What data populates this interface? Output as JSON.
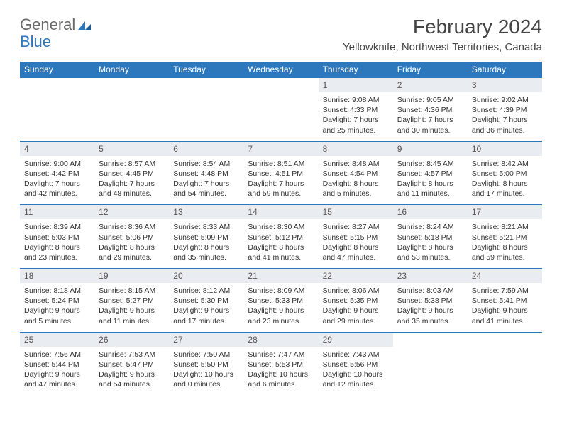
{
  "logo": {
    "text1": "General",
    "text2": "Blue"
  },
  "title": "February 2024",
  "location": "Yellowknife, Northwest Territories, Canada",
  "weekday_labels": [
    "Sunday",
    "Monday",
    "Tuesday",
    "Wednesday",
    "Thursday",
    "Friday",
    "Saturday"
  ],
  "colors": {
    "header_bg": "#2d78bd",
    "header_text": "#ffffff",
    "daynum_bg": "#e9edf1",
    "border": "#2d78bd",
    "text": "#333333",
    "logo_gray": "#6a6a6a",
    "logo_blue": "#2d78bd"
  },
  "typography": {
    "title_fontsize": 28,
    "location_fontsize": 15,
    "weekday_fontsize": 12,
    "daynum_fontsize": 12,
    "cell_fontsize": 10.5
  },
  "weeks": [
    [
      null,
      null,
      null,
      null,
      {
        "n": "1",
        "sr": "Sunrise: 9:08 AM",
        "ss": "Sunset: 4:33 PM",
        "dl1": "Daylight: 7 hours",
        "dl2": "and 25 minutes."
      },
      {
        "n": "2",
        "sr": "Sunrise: 9:05 AM",
        "ss": "Sunset: 4:36 PM",
        "dl1": "Daylight: 7 hours",
        "dl2": "and 30 minutes."
      },
      {
        "n": "3",
        "sr": "Sunrise: 9:02 AM",
        "ss": "Sunset: 4:39 PM",
        "dl1": "Daylight: 7 hours",
        "dl2": "and 36 minutes."
      }
    ],
    [
      {
        "n": "4",
        "sr": "Sunrise: 9:00 AM",
        "ss": "Sunset: 4:42 PM",
        "dl1": "Daylight: 7 hours",
        "dl2": "and 42 minutes."
      },
      {
        "n": "5",
        "sr": "Sunrise: 8:57 AM",
        "ss": "Sunset: 4:45 PM",
        "dl1": "Daylight: 7 hours",
        "dl2": "and 48 minutes."
      },
      {
        "n": "6",
        "sr": "Sunrise: 8:54 AM",
        "ss": "Sunset: 4:48 PM",
        "dl1": "Daylight: 7 hours",
        "dl2": "and 54 minutes."
      },
      {
        "n": "7",
        "sr": "Sunrise: 8:51 AM",
        "ss": "Sunset: 4:51 PM",
        "dl1": "Daylight: 7 hours",
        "dl2": "and 59 minutes."
      },
      {
        "n": "8",
        "sr": "Sunrise: 8:48 AM",
        "ss": "Sunset: 4:54 PM",
        "dl1": "Daylight: 8 hours",
        "dl2": "and 5 minutes."
      },
      {
        "n": "9",
        "sr": "Sunrise: 8:45 AM",
        "ss": "Sunset: 4:57 PM",
        "dl1": "Daylight: 8 hours",
        "dl2": "and 11 minutes."
      },
      {
        "n": "10",
        "sr": "Sunrise: 8:42 AM",
        "ss": "Sunset: 5:00 PM",
        "dl1": "Daylight: 8 hours",
        "dl2": "and 17 minutes."
      }
    ],
    [
      {
        "n": "11",
        "sr": "Sunrise: 8:39 AM",
        "ss": "Sunset: 5:03 PM",
        "dl1": "Daylight: 8 hours",
        "dl2": "and 23 minutes."
      },
      {
        "n": "12",
        "sr": "Sunrise: 8:36 AM",
        "ss": "Sunset: 5:06 PM",
        "dl1": "Daylight: 8 hours",
        "dl2": "and 29 minutes."
      },
      {
        "n": "13",
        "sr": "Sunrise: 8:33 AM",
        "ss": "Sunset: 5:09 PM",
        "dl1": "Daylight: 8 hours",
        "dl2": "and 35 minutes."
      },
      {
        "n": "14",
        "sr": "Sunrise: 8:30 AM",
        "ss": "Sunset: 5:12 PM",
        "dl1": "Daylight: 8 hours",
        "dl2": "and 41 minutes."
      },
      {
        "n": "15",
        "sr": "Sunrise: 8:27 AM",
        "ss": "Sunset: 5:15 PM",
        "dl1": "Daylight: 8 hours",
        "dl2": "and 47 minutes."
      },
      {
        "n": "16",
        "sr": "Sunrise: 8:24 AM",
        "ss": "Sunset: 5:18 PM",
        "dl1": "Daylight: 8 hours",
        "dl2": "and 53 minutes."
      },
      {
        "n": "17",
        "sr": "Sunrise: 8:21 AM",
        "ss": "Sunset: 5:21 PM",
        "dl1": "Daylight: 8 hours",
        "dl2": "and 59 minutes."
      }
    ],
    [
      {
        "n": "18",
        "sr": "Sunrise: 8:18 AM",
        "ss": "Sunset: 5:24 PM",
        "dl1": "Daylight: 9 hours",
        "dl2": "and 5 minutes."
      },
      {
        "n": "19",
        "sr": "Sunrise: 8:15 AM",
        "ss": "Sunset: 5:27 PM",
        "dl1": "Daylight: 9 hours",
        "dl2": "and 11 minutes."
      },
      {
        "n": "20",
        "sr": "Sunrise: 8:12 AM",
        "ss": "Sunset: 5:30 PM",
        "dl1": "Daylight: 9 hours",
        "dl2": "and 17 minutes."
      },
      {
        "n": "21",
        "sr": "Sunrise: 8:09 AM",
        "ss": "Sunset: 5:33 PM",
        "dl1": "Daylight: 9 hours",
        "dl2": "and 23 minutes."
      },
      {
        "n": "22",
        "sr": "Sunrise: 8:06 AM",
        "ss": "Sunset: 5:35 PM",
        "dl1": "Daylight: 9 hours",
        "dl2": "and 29 minutes."
      },
      {
        "n": "23",
        "sr": "Sunrise: 8:03 AM",
        "ss": "Sunset: 5:38 PM",
        "dl1": "Daylight: 9 hours",
        "dl2": "and 35 minutes."
      },
      {
        "n": "24",
        "sr": "Sunrise: 7:59 AM",
        "ss": "Sunset: 5:41 PM",
        "dl1": "Daylight: 9 hours",
        "dl2": "and 41 minutes."
      }
    ],
    [
      {
        "n": "25",
        "sr": "Sunrise: 7:56 AM",
        "ss": "Sunset: 5:44 PM",
        "dl1": "Daylight: 9 hours",
        "dl2": "and 47 minutes."
      },
      {
        "n": "26",
        "sr": "Sunrise: 7:53 AM",
        "ss": "Sunset: 5:47 PM",
        "dl1": "Daylight: 9 hours",
        "dl2": "and 54 minutes."
      },
      {
        "n": "27",
        "sr": "Sunrise: 7:50 AM",
        "ss": "Sunset: 5:50 PM",
        "dl1": "Daylight: 10 hours",
        "dl2": "and 0 minutes."
      },
      {
        "n": "28",
        "sr": "Sunrise: 7:47 AM",
        "ss": "Sunset: 5:53 PM",
        "dl1": "Daylight: 10 hours",
        "dl2": "and 6 minutes."
      },
      {
        "n": "29",
        "sr": "Sunrise: 7:43 AM",
        "ss": "Sunset: 5:56 PM",
        "dl1": "Daylight: 10 hours",
        "dl2": "and 12 minutes."
      },
      null,
      null
    ]
  ]
}
